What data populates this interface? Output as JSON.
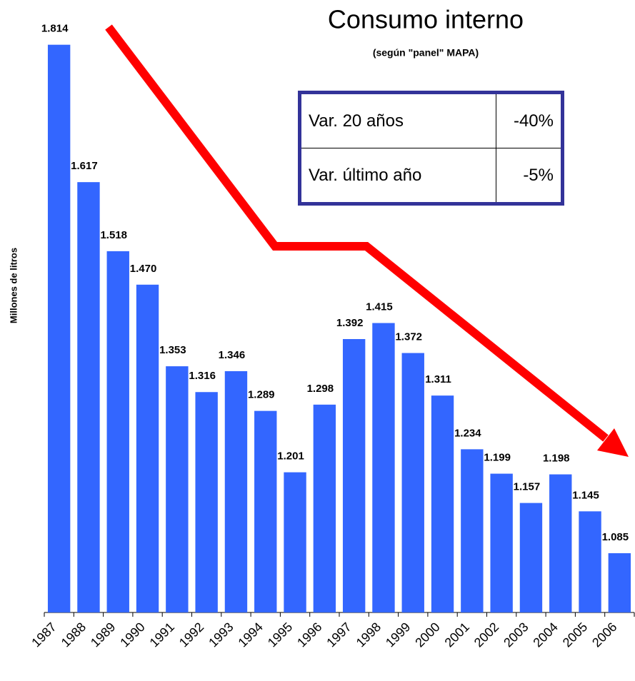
{
  "chart_data": {
    "type": "bar",
    "title": "Consumo interno",
    "subtitle": "(según \"panel\" MAPA)",
    "ylabel": "Millones de litros",
    "categories": [
      "1987",
      "1988",
      "1989",
      "1990",
      "1991",
      "1992",
      "1993",
      "1994",
      "1995",
      "1996",
      "1997",
      "1998",
      "1999",
      "2000",
      "2001",
      "2002",
      "2003",
      "2004",
      "2005",
      "2006"
    ],
    "values": [
      1814,
      1617,
      1518,
      1470,
      1353,
      1316,
      1346,
      1289,
      1201,
      1298,
      1392,
      1415,
      1372,
      1311,
      1234,
      1199,
      1157,
      1198,
      1145,
      1085
    ],
    "value_labels": [
      "1.814",
      "1.617",
      "1.518",
      "1.470",
      "1.353",
      "1.316",
      "1.346",
      "1.289",
      "1.201",
      "1.298",
      "1.392",
      "1.415",
      "1.372",
      "1.311",
      "1.234",
      "1.199",
      "1.157",
      "1.198",
      "1.145",
      "1.085"
    ],
    "color": "#3366ff",
    "ylim": [
      1000,
      1850
    ],
    "table": {
      "rows": [
        [
          "Var. 20 años",
          "-40%"
        ],
        [
          "Var. último año",
          "-5%"
        ]
      ]
    }
  }
}
